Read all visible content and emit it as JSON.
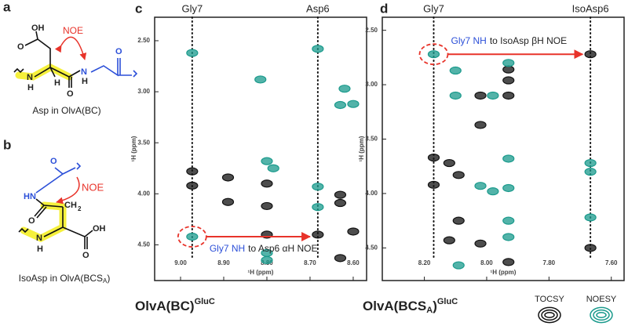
{
  "panel_a": {
    "letter": "a",
    "noe": "NOE",
    "caption": "Asp in OlvA(BC)",
    "atoms": [
      "OH",
      "O",
      "N",
      "H",
      "H",
      "O",
      "N",
      "H",
      "O"
    ]
  },
  "panel_b": {
    "letter": "b",
    "noe": "NOE",
    "caption": [
      "IsoAsp in OlvA(BCS",
      "A",
      ")"
    ],
    "atoms": [
      "O",
      "HN",
      "O",
      "CH",
      "2",
      "N",
      "H",
      "OH",
      "O"
    ]
  },
  "chart_data": [
    {
      "type": "scatter",
      "panel": "c",
      "title": [
        "OlvA(BC)",
        "GluC"
      ],
      "xlabel": "¹H (ppm)",
      "ylabel": "¹H (ppm)",
      "xlim": [
        9.06,
        8.569
      ],
      "ylim": [
        2.27,
        4.85
      ],
      "xticks": [
        {
          "value": 9.0,
          "label": "9.00"
        },
        {
          "value": 8.9,
          "label": "8.90"
        },
        {
          "value": 8.8,
          "label": "8.80"
        },
        {
          "value": 8.7,
          "label": "8.70"
        },
        {
          "value": 8.6,
          "label": "8.60"
        }
      ],
      "yticks": [
        {
          "value": 2.5,
          "label": "2.50"
        },
        {
          "value": 3.0,
          "label": "3.00"
        },
        {
          "value": 3.5,
          "label": "3.50"
        },
        {
          "value": 4.0,
          "label": "4.00"
        },
        {
          "value": 4.5,
          "label": "4.50"
        }
      ],
      "guides": [
        {
          "label": "Gly7",
          "x": 8.973
        },
        {
          "label": "Asp6",
          "x": 8.682
        }
      ],
      "annotation": {
        "highlight": "Gly7 NH",
        "text": "to Asp6 αH NOE"
      },
      "series": [
        {
          "name": "TOCSY",
          "color": "#111111",
          "x": [
            8.973,
            8.973,
            8.89,
            8.89,
            8.8,
            8.8,
            8.8,
            8.682,
            8.63,
            8.63,
            8.6,
            8.63
          ],
          "values": [
            3.78,
            3.92,
            3.84,
            4.08,
            3.9,
            4.12,
            4.4,
            4.4,
            4.01,
            4.09,
            4.37,
            4.63
          ]
        },
        {
          "name": "NOESY",
          "color": "#1a9a8c",
          "x": [
            8.973,
            8.973,
            8.682,
            8.8,
            8.785,
            8.8,
            8.682,
            8.682,
            8.63,
            8.62,
            8.6,
            8.815,
            8.8
          ],
          "values": [
            2.62,
            4.42,
            2.58,
            3.68,
            3.75,
            4.58,
            3.93,
            4.13,
            3.13,
            2.97,
            3.12,
            2.88,
            4.65
          ]
        }
      ]
    },
    {
      "type": "scatter",
      "panel": "d",
      "title": [
        "OlvA(BCS",
        "A",
        ")",
        "GluC"
      ],
      "xlabel": "¹H (ppm)",
      "ylabel": "¹H (ppm)",
      "xlim": [
        8.335,
        7.559
      ],
      "ylim": [
        2.38,
        4.8
      ],
      "xticks": [
        {
          "value": 8.2,
          "label": "8.20"
        },
        {
          "value": 8.0,
          "label": "8.00"
        },
        {
          "value": 7.8,
          "label": "7.80"
        },
        {
          "value": 7.6,
          "label": "7.60"
        }
      ],
      "yticks": [
        {
          "value": 2.5,
          "label": "2.50"
        },
        {
          "value": 3.0,
          "label": "3.00"
        },
        {
          "value": 3.5,
          "label": "3.50"
        },
        {
          "value": 4.0,
          "label": "4.00"
        },
        {
          "value": 4.5,
          "label": "4.50"
        }
      ],
      "guides": [
        {
          "label": "Gly7",
          "x": 8.17
        },
        {
          "label": "IsoAsp6",
          "x": 7.667
        }
      ],
      "annotation": {
        "highlight": "Gly7 NH",
        "text": "to IsoAsp βH NOE"
      },
      "series": [
        {
          "name": "TOCSY",
          "color": "#111111",
          "x": [
            8.17,
            8.17,
            8.12,
            8.09,
            8.09,
            8.12,
            8.02,
            8.02,
            8.02,
            7.93,
            7.93,
            7.93,
            7.93,
            7.667,
            7.667
          ],
          "values": [
            3.67,
            3.92,
            3.72,
            3.83,
            4.25,
            4.43,
            3.1,
            3.37,
            4.46,
            3.1,
            2.86,
            2.96,
            4.63,
            2.72,
            4.5
          ]
        },
        {
          "name": "NOESY",
          "color": "#1a9a8c",
          "x": [
            8.17,
            8.1,
            8.02,
            7.98,
            7.93,
            7.93,
            7.98,
            7.93,
            8.09,
            7.667,
            7.667,
            7.667,
            7.93,
            8.1,
            7.93
          ],
          "values": [
            2.72,
            3.1,
            3.93,
            3.1,
            2.8,
            3.68,
            3.98,
            3.95,
            4.66,
            3.72,
            3.8,
            4.22,
            4.25,
            2.87,
            4.4
          ]
        }
      ]
    }
  ]
}
